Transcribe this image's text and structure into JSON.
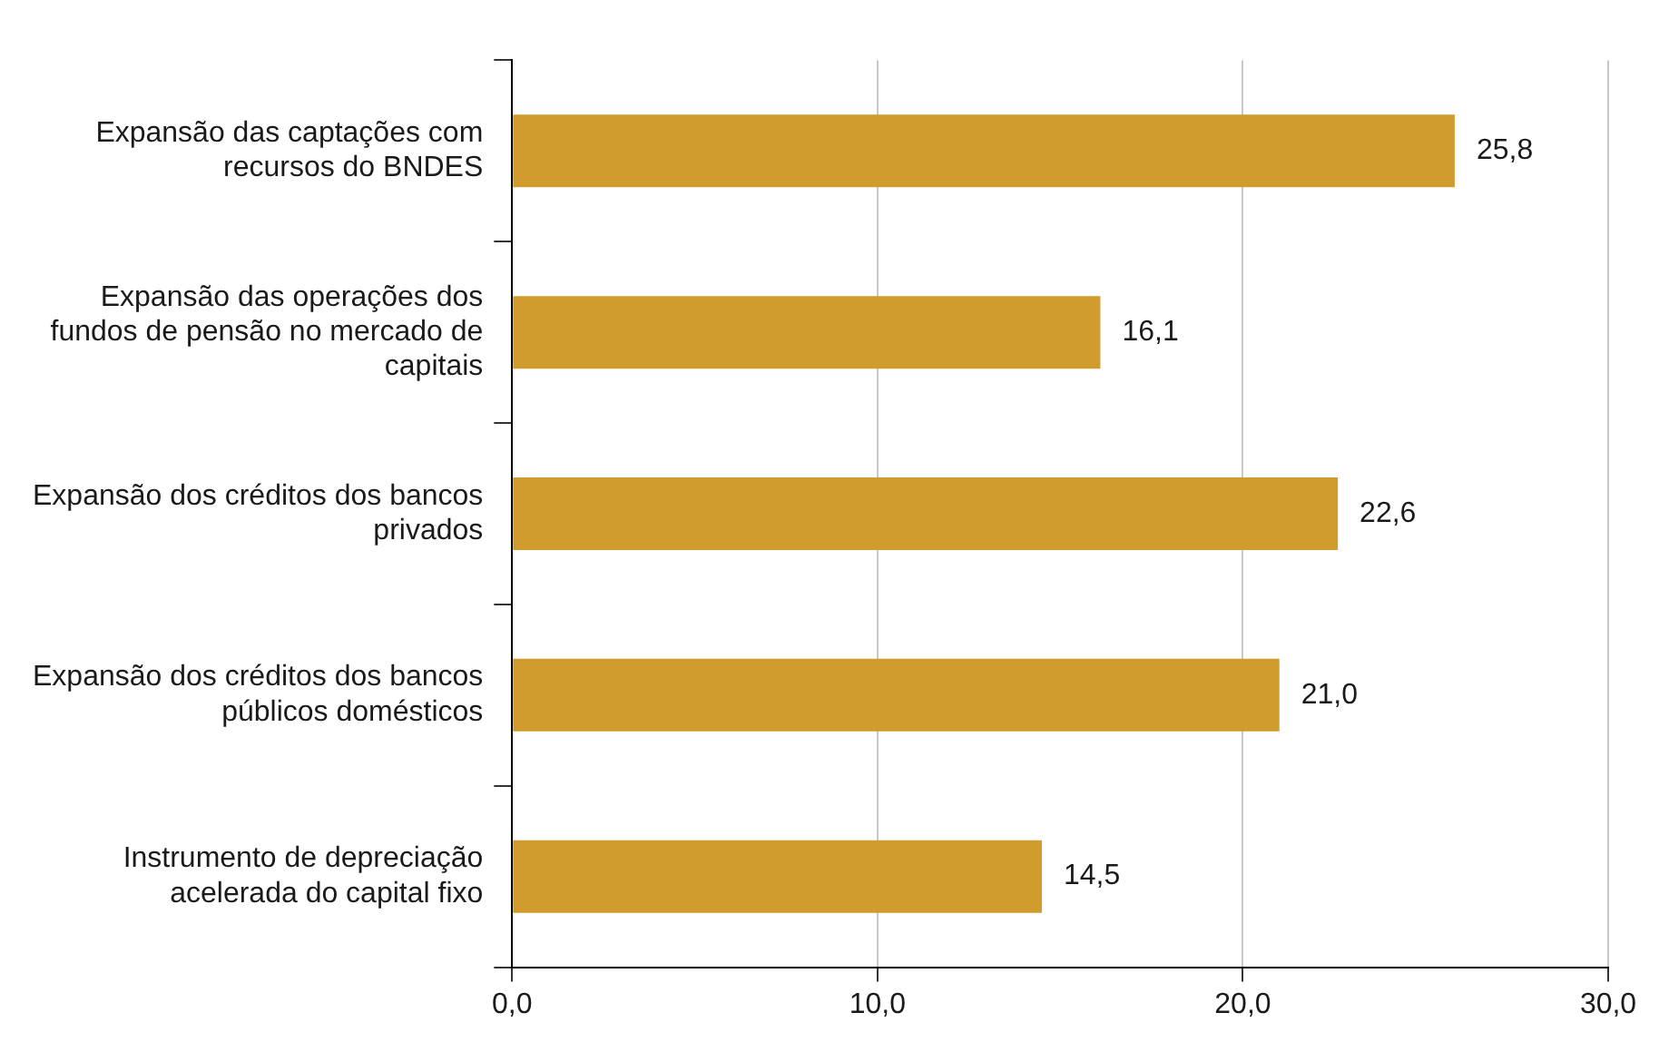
{
  "chart_data": {
    "type": "bar",
    "orientation": "horizontal",
    "categories": [
      "Expansão das captações com recursos do BNDES",
      "Expansão das operações dos fundos de pensão no mercado de capitais",
      "Expansão dos créditos dos bancos privados",
      "Expansão dos créditos dos bancos públicos domésticos",
      "Instrumento de depreciação acelerada do capital fixo"
    ],
    "values": [
      25.8,
      16.1,
      22.6,
      21.0,
      14.5
    ],
    "value_labels": [
      "25,8",
      "16,1",
      "22,6",
      "21,0",
      "14,5"
    ],
    "color": "#d09c2e",
    "xlim": [
      0,
      30
    ],
    "xticks": [
      {
        "value": 0,
        "label": "0,0"
      },
      {
        "value": 10,
        "label": "10,0"
      },
      {
        "value": 20,
        "label": "20,0"
      },
      {
        "value": 30,
        "label": "30,0"
      }
    ],
    "grid": "x",
    "legend": false
  }
}
